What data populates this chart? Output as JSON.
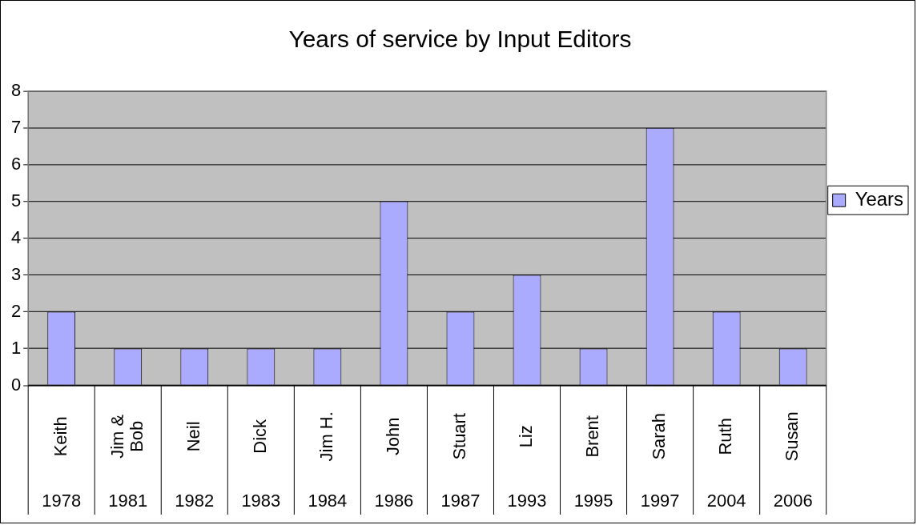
{
  "chart_data": {
    "type": "bar",
    "title": "Years of service by Input Editors",
    "categories": [
      "Keith 1978",
      "Jim & Bob 1981",
      "Neil 1982",
      "Dick 1983",
      "Jim H. 1984",
      "John 1986",
      "Stuart 1987",
      "Liz 1993",
      "Brent 1995",
      "Sarah 1997",
      "Ruth 2004",
      "Susan 2006"
    ],
    "series": [
      {
        "name": "Years",
        "color": "#aaaaff",
        "values": [
          2,
          1,
          1,
          1,
          1,
          5,
          2,
          3,
          1,
          7,
          2,
          1
        ]
      }
    ],
    "ylim": [
      0,
      8
    ],
    "yticks": [
      0,
      1,
      2,
      3,
      4,
      5,
      6,
      7,
      8
    ],
    "grid": "y",
    "legend": "right"
  }
}
